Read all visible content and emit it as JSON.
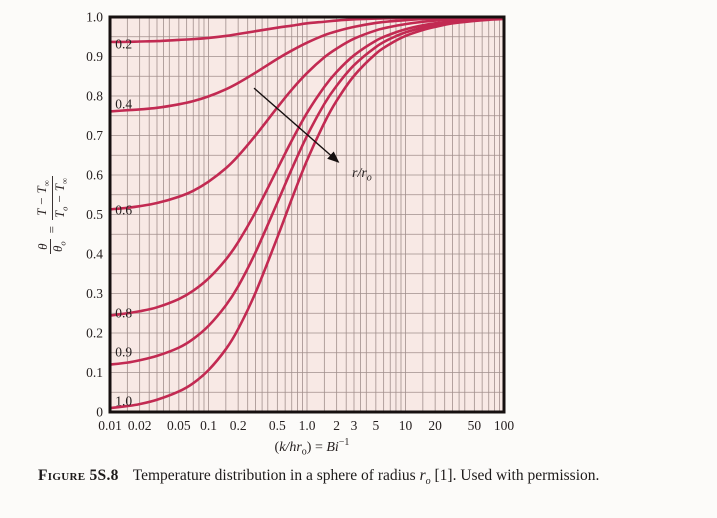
{
  "figure": {
    "caption_label": "Figure 5S.8",
    "caption_text_pre": "Temperature distribution in a sphere of radius ",
    "caption_r": "r",
    "caption_r_sub": "o",
    "caption_text_post": " [1]. Used with permission."
  },
  "axes": {
    "xlabel": {
      "open": "(",
      "khr": "k/hr",
      "o": "o",
      "close": ") = ",
      "bi": "Bi",
      "exp": "−1"
    },
    "ylabel": {
      "num1": "θ",
      "den1_base": "θ",
      "den1_sub": "o",
      "eq": "=",
      "t": "T",
      "minus": " − ",
      "inf": "∞",
      "o_sub": "o"
    }
  },
  "chart_data": {
    "type": "line",
    "title": "",
    "xlabel": "(k/hr_o) = Bi^-1",
    "ylabel": "theta/theta_o = (T - T_inf)/(T_o - T_inf)",
    "x_scale": "log",
    "xlim": [
      0.01,
      100
    ],
    "ylim": [
      0,
      1
    ],
    "grid": {
      "horizontal_step": 0.05,
      "log_minors": [
        1,
        1.5,
        2,
        2.5,
        3,
        3.5,
        4,
        5,
        6,
        7,
        8,
        9
      ]
    },
    "x_ticks": [
      {
        "v": 0.01,
        "label": "0.01"
      },
      {
        "v": 0.02,
        "label": "0.02"
      },
      {
        "v": 0.05,
        "label": "0.05"
      },
      {
        "v": 0.1,
        "label": "0.1"
      },
      {
        "v": 0.2,
        "label": "0.2"
      },
      {
        "v": 0.5,
        "label": "0.5"
      },
      {
        "v": 1,
        "label": "1.0"
      },
      {
        "v": 2,
        "label": "2"
      },
      {
        "v": 3,
        "label": "3"
      },
      {
        "v": 5,
        "label": "5"
      },
      {
        "v": 10,
        "label": "10"
      },
      {
        "v": 20,
        "label": "20"
      },
      {
        "v": 50,
        "label": "50"
      },
      {
        "v": 100,
        "label": "100"
      }
    ],
    "y_ticks": [
      {
        "v": 1.0,
        "label": "1.0"
      },
      {
        "v": 0.9,
        "label": "0.9"
      },
      {
        "v": 0.8,
        "label": "0.8"
      },
      {
        "v": 0.7,
        "label": "0.7"
      },
      {
        "v": 0.6,
        "label": "0.6"
      },
      {
        "v": 0.5,
        "label": "0.5"
      },
      {
        "v": 0.4,
        "label": "0.4"
      },
      {
        "v": 0.3,
        "label": "0.3"
      },
      {
        "v": 0.2,
        "label": "0.2"
      },
      {
        "v": 0.1,
        "label": "0.1"
      },
      {
        "v": 0,
        "label": "0"
      }
    ],
    "x": [
      0.01,
      0.015,
      0.02,
      0.03,
      0.05,
      0.07,
      0.1,
      0.15,
      0.2,
      0.3,
      0.5,
      0.7,
      1,
      1.5,
      2,
      3,
      5,
      7,
      10,
      15,
      20,
      30,
      50,
      70,
      100
    ],
    "series": [
      {
        "name": "r/ro = 0.2",
        "label": "0.2",
        "label_y": 0.932,
        "values": [
          0.937,
          0.937,
          0.938,
          0.939,
          0.942,
          0.944,
          0.947,
          0.952,
          0.957,
          0.964,
          0.973,
          0.978,
          0.984,
          0.988,
          0.991,
          0.994,
          0.996,
          0.997,
          0.998,
          0.999,
          0.999,
          0.999,
          1.0,
          1.0,
          1.0
        ]
      },
      {
        "name": "r/ro = 0.4",
        "label": "0.4",
        "label_y": 0.78,
        "values": [
          0.761,
          0.764,
          0.766,
          0.77,
          0.779,
          0.787,
          0.799,
          0.817,
          0.833,
          0.859,
          0.894,
          0.915,
          0.935,
          0.954,
          0.964,
          0.975,
          0.985,
          0.989,
          0.992,
          0.995,
          0.996,
          0.997,
          0.998,
          0.999,
          0.999
        ]
      },
      {
        "name": "r/ro = 0.6",
        "label": "0.6",
        "label_y": 0.511,
        "values": [
          0.513,
          0.517,
          0.521,
          0.529,
          0.545,
          0.56,
          0.583,
          0.617,
          0.648,
          0.7,
          0.771,
          0.816,
          0.858,
          0.898,
          0.92,
          0.945,
          0.966,
          0.975,
          0.982,
          0.988,
          0.991,
          0.994,
          0.996,
          0.997,
          0.998
        ]
      },
      {
        "name": "r/ro = 0.8",
        "label": "0.8",
        "label_y": 0.251,
        "values": [
          0.244,
          0.25,
          0.255,
          0.265,
          0.286,
          0.307,
          0.338,
          0.386,
          0.43,
          0.506,
          0.615,
          0.687,
          0.757,
          0.823,
          0.861,
          0.903,
          0.94,
          0.956,
          0.969,
          0.979,
          0.984,
          0.989,
          0.994,
          0.995,
          0.997
        ]
      },
      {
        "name": "r/ro = 0.9",
        "label": "0.9",
        "label_y": 0.152,
        "values": [
          0.12,
          0.125,
          0.131,
          0.142,
          0.163,
          0.185,
          0.218,
          0.27,
          0.318,
          0.404,
          0.53,
          0.615,
          0.699,
          0.78,
          0.826,
          0.878,
          0.924,
          0.945,
          0.961,
          0.973,
          0.98,
          0.987,
          0.992,
          0.994,
          0.996
        ]
      },
      {
        "name": "r/ro = 1.0",
        "label": "1.0",
        "label_y": 0.028,
        "values": [
          0.01,
          0.015,
          0.02,
          0.031,
          0.052,
          0.073,
          0.106,
          0.159,
          0.21,
          0.302,
          0.442,
          0.539,
          0.637,
          0.732,
          0.788,
          0.851,
          0.907,
          0.932,
          0.952,
          0.967,
          0.975,
          0.984,
          0.99,
          0.993,
          0.995
        ]
      }
    ],
    "series_label_x": 0.0113,
    "annotation": {
      "arrow_from": [
        0.29,
        0.82
      ],
      "arrow_to": [
        2.08,
        0.633
      ],
      "label_main": "r/r",
      "label_sub": "o"
    },
    "legend": "curve labels inside plot at left edge; arrow indicates increasing r/ro",
    "colors": {
      "curve": "#c22a52",
      "plot_bg": "#f8e9e5",
      "grid": "#a18f8c",
      "border": "#161010",
      "text": "#262020",
      "caption_accent": "#c22a52"
    }
  }
}
